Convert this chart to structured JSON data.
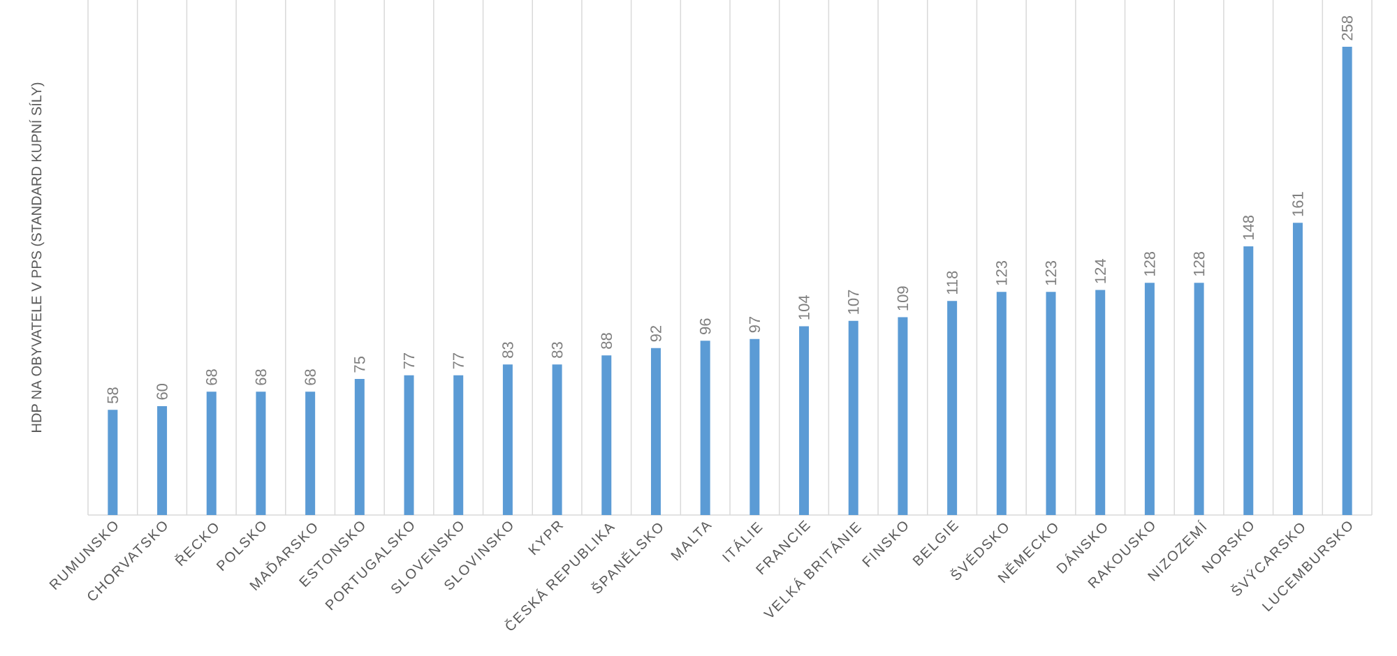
{
  "chart_data": {
    "type": "bar",
    "ylabel": "HDP NA OBYVATELE V PPS (STANDARD KUPNÍ SÍLY)",
    "categories": [
      "RUMUNSKO",
      "CHORVATSKO",
      "ŘECKO",
      "POLSKO",
      "MAĎARSKO",
      "ESTONSKO",
      "PORTUGALSKO",
      "SLOVENSKO",
      "SLOVINSKO",
      "KYPR",
      "ČESKÁ REPUBLIKA",
      "ŠPANĚLSKO",
      "MALTA",
      "ITÁLIE",
      "FRANCIE",
      "VELKÁ BRITÁNIE",
      "FINSKO",
      "BELGIE",
      "ŠVÉDSKO",
      "NĚMECKO",
      "DÁNSKO",
      "RAKOUSKO",
      "NIZOZEMÍ",
      "NORSKO",
      "ŠVÝCARSKO",
      "LUCEMBURSKO"
    ],
    "values": [
      58,
      60,
      68,
      68,
      68,
      75,
      77,
      77,
      83,
      83,
      88,
      92,
      96,
      97,
      104,
      107,
      109,
      118,
      123,
      123,
      124,
      128,
      128,
      148,
      161,
      258
    ],
    "color": "#5b9bd5",
    "data_labels": true,
    "grid": "x"
  }
}
